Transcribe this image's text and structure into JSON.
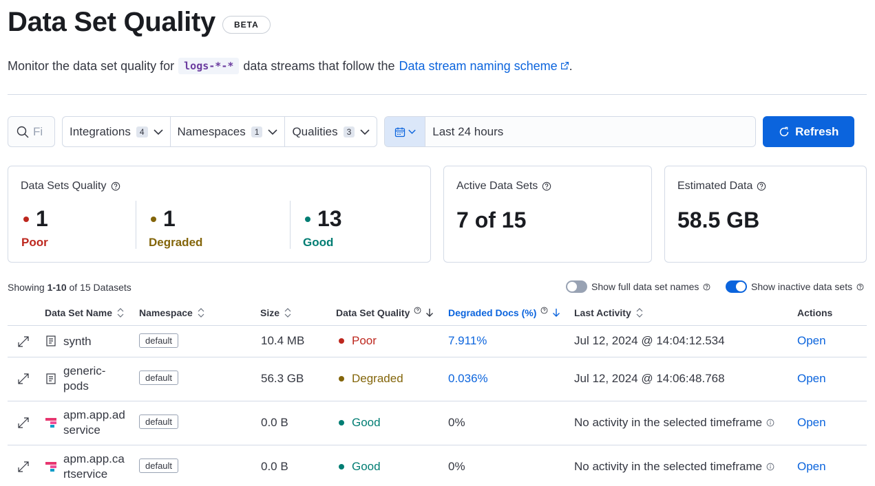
{
  "header": {
    "title": "Data Set Quality",
    "badge": "BETA"
  },
  "description": {
    "prefix": "Monitor the data set quality for",
    "pattern": "logs-*-*",
    "middle": "data streams that follow the",
    "link": "Data stream naming scheme",
    "suffix": "."
  },
  "filters": {
    "search_placeholder": "Fi",
    "integrations": {
      "label": "Integrations",
      "count": "4"
    },
    "namespaces": {
      "label": "Namespaces",
      "count": "1"
    },
    "qualities": {
      "label": "Qualities",
      "count": "3"
    },
    "date_range": "Last 24 hours",
    "refresh_label": "Refresh"
  },
  "summary": {
    "quality_panel": {
      "title": "Data Sets Quality",
      "poor": {
        "value": "1",
        "label": "Poor"
      },
      "degraded": {
        "value": "1",
        "label": "Degraded"
      },
      "good": {
        "value": "13",
        "label": "Good"
      }
    },
    "active_panel": {
      "title": "Active Data Sets",
      "value": "7 of 15"
    },
    "estimated_panel": {
      "title": "Estimated Data",
      "value": "58.5 GB"
    }
  },
  "table_meta": {
    "showing_prefix": "Showing",
    "showing_range": "1-10",
    "showing_suffix": "of 15 Datasets",
    "toggle_full_names": "Show full data set names",
    "toggle_inactive": "Show inactive data sets"
  },
  "columns": {
    "name": "Data Set Name",
    "namespace": "Namespace",
    "size": "Size",
    "quality": "Data Set Quality",
    "degraded": "Degraded Docs (%)",
    "activity": "Last Activity",
    "actions": "Actions"
  },
  "rows": [
    {
      "name_l1": "synth",
      "name_l2": "",
      "icon": "document-icon",
      "namespace": "default",
      "size": "10.4 MB",
      "quality": "Poor",
      "degraded": "7.911%",
      "activity": "Jul 12, 2024 @ 14:04:12.534",
      "action": "Open"
    },
    {
      "name_l1": "generic-",
      "name_l2": "pods",
      "icon": "document-icon",
      "namespace": "default",
      "size": "56.3 GB",
      "quality": "Degraded",
      "degraded": "0.036%",
      "activity": "Jul 12, 2024 @ 14:06:48.768",
      "action": "Open"
    },
    {
      "name_l1": "apm.app.ad",
      "name_l2": "service",
      "icon": "apm-icon",
      "namespace": "default",
      "size": "0.0 B",
      "quality": "Good",
      "degraded": "0%",
      "activity": "No activity in the selected timeframe",
      "action": "Open"
    },
    {
      "name_l1": "apm.app.ca",
      "name_l2": "rtservice",
      "icon": "apm-icon",
      "namespace": "default",
      "size": "0.0 B",
      "quality": "Good",
      "degraded": "0%",
      "activity": "No activity in the selected timeframe",
      "action": "Open"
    }
  ],
  "colors": {
    "poor": "#bd271e",
    "degraded": "#83650a",
    "good": "#017d73",
    "accent": "#0b64dd"
  }
}
